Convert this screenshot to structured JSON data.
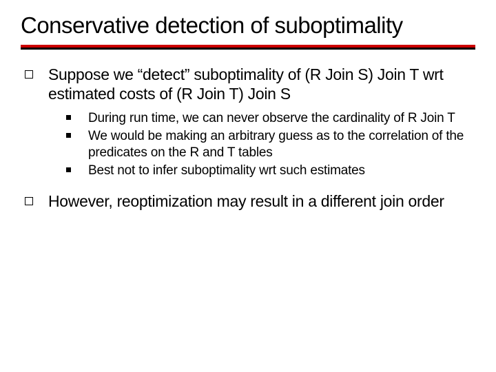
{
  "slide": {
    "title": "Conservative detection of suboptimality",
    "rule": {
      "top_color": "#cc0000",
      "bottom_color": "#000000"
    },
    "bullets": [
      {
        "text": "Suppose we “detect” suboptimality of (R Join S) Join T wrt estimated costs of (R Join T) Join S",
        "subs": [
          {
            "text": "During run time, we can never observe the cardinality of R Join T"
          },
          {
            "text": "We would be making an arbitrary guess as to the correlation of the predicates on the R and T tables"
          },
          {
            "text": "Best not to infer suboptimality wrt such estimates"
          }
        ]
      },
      {
        "text": "However, reoptimization may result in a different join order",
        "subs": []
      }
    ]
  },
  "style": {
    "background_color": "#ffffff",
    "text_color": "#000000",
    "title_fontsize": 33,
    "level1_fontsize": 23,
    "level2_fontsize": 19,
    "font_family": "Verdana"
  }
}
